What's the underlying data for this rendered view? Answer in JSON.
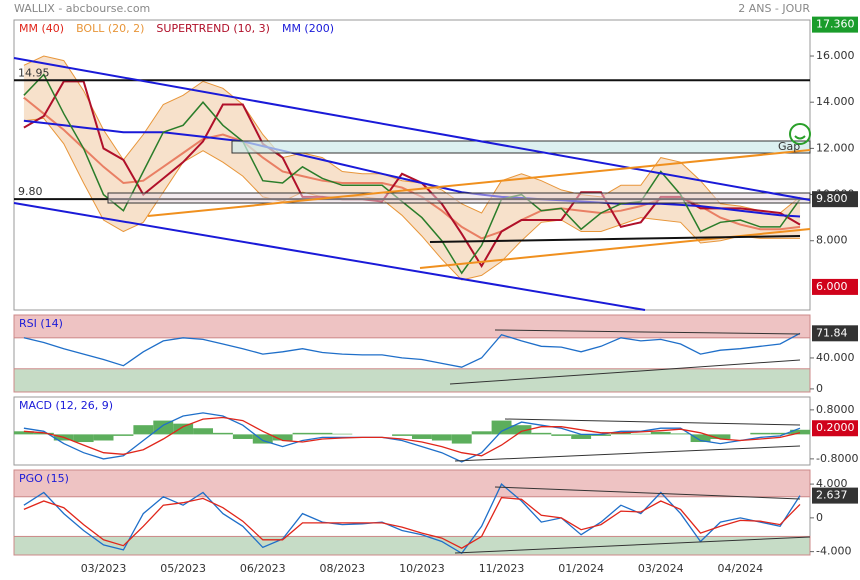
{
  "header": {
    "title": "WALLIX - abcbourse.com",
    "period": "2 ANS - JOUR"
  },
  "chart_data": [
    {
      "type": "line",
      "ylim": [
        5.0,
        17.56
      ],
      "yticks": [
        {
          "value": 16,
          "label": "16.000"
        },
        {
          "value": 14,
          "label": "14.000"
        },
        {
          "value": 12,
          "label": "12.000"
        },
        {
          "value": 10,
          "label": "10.000"
        },
        {
          "value": 8,
          "label": "8.000"
        }
      ],
      "hlines": [
        {
          "value": 14.95,
          "label": "14.95"
        },
        {
          "value": 9.8,
          "label": "9.80"
        }
      ],
      "markers": [
        {
          "value": 17.36,
          "label": "17.360",
          "color": "#1a9c2b"
        },
        {
          "value": 9.8,
          "label": "9.800",
          "color": "#333333"
        },
        {
          "value": 6.0,
          "label": "6.000",
          "color": "#d0021b"
        }
      ],
      "annotation": "Gap",
      "price": {
        "color": "#2a7d2a",
        "values": [
          14.3,
          15.2,
          13.5,
          12.0,
          10.0,
          9.3,
          11.0,
          12.7,
          13.0,
          14.0,
          13.0,
          12.3,
          10.6,
          10.5,
          11.2,
          10.7,
          10.4,
          10.4,
          10.4,
          9.7,
          9.0,
          8.0,
          6.6,
          7.8,
          9.8,
          10.0,
          9.3,
          9.4,
          8.5,
          9.2,
          9.6,
          9.7,
          11.0,
          10.0,
          8.4,
          8.8,
          8.9,
          8.6,
          8.6,
          9.8
        ]
      },
      "series": [
        {
          "name": "MM (40)",
          "color": "#e0261b",
          "values": [
            14.2,
            13.5,
            12.8,
            12.0,
            11.2,
            10.5,
            10.6,
            11.2,
            11.8,
            12.4,
            12.6,
            12.3,
            11.6,
            11.0,
            10.8,
            10.6,
            10.5,
            10.5,
            10.5,
            10.3,
            9.9,
            9.3,
            8.6,
            8.1,
            8.4,
            8.9,
            9.3,
            9.4,
            9.3,
            9.2,
            9.3,
            9.5,
            9.8,
            9.9,
            9.5,
            9.0,
            8.7,
            8.5,
            8.5,
            8.6
          ]
        },
        {
          "name": "BOLL (20, 2)",
          "color": "#e8963a",
          "values": [
            15.6,
            16.0,
            15.8,
            14.5,
            12.8,
            11.5,
            12.6,
            13.9,
            14.3,
            14.9,
            14.6,
            13.9,
            12.6,
            11.6,
            11.8,
            11.6,
            11.0,
            10.9,
            10.9,
            10.6,
            10.5,
            10.2,
            9.6,
            9.2,
            10.6,
            10.9,
            10.6,
            10.2,
            10.0,
            9.9,
            10.4,
            10.4,
            11.6,
            11.4,
            10.6,
            9.6,
            9.5,
            9.3,
            9.2,
            9.9
          ],
          "lower": [
            13.2,
            13.3,
            12.2,
            10.5,
            8.9,
            8.4,
            8.8,
            10.1,
            11.4,
            11.9,
            11.4,
            10.8,
            9.9,
            9.7,
            10.1,
            9.9,
            9.9,
            9.9,
            9.8,
            9.1,
            8.2,
            7.2,
            6.3,
            6.5,
            7.1,
            8.0,
            8.8,
            8.9,
            8.4,
            8.4,
            8.7,
            9.0,
            8.9,
            8.8,
            7.9,
            8.0,
            8.2,
            8.1,
            8.1,
            8.1
          ]
        },
        {
          "name": "SUPERTREND (10, 3)",
          "color": "#b0102a",
          "values": [
            12.9,
            13.4,
            14.9,
            14.9,
            12.0,
            11.5,
            10.0,
            10.7,
            11.4,
            12.3,
            13.9,
            13.9,
            12.2,
            11.6,
            9.9,
            9.9,
            9.8,
            9.8,
            9.7,
            10.9,
            10.5,
            9.6,
            8.3,
            6.9,
            8.4,
            8.9,
            8.9,
            8.9,
            10.1,
            10.1,
            8.6,
            8.8,
            9.9,
            9.9,
            9.4,
            9.4,
            9.4,
            9.3,
            9.2,
            8.7
          ]
        },
        {
          "name": "MM (200)",
          "color": "#1a1ad8",
          "values": [
            13.2,
            13.1,
            13.0,
            12.9,
            12.8,
            12.7,
            12.7,
            12.7,
            12.6,
            12.5,
            12.4,
            12.3,
            12.1,
            11.9,
            11.7,
            11.5,
            11.3,
            11.1,
            10.9,
            10.7,
            10.5,
            10.3,
            10.1,
            10.0,
            9.9,
            9.85,
            9.8,
            9.75,
            9.7,
            9.65,
            9.6,
            9.6,
            9.6,
            9.55,
            9.5,
            9.4,
            9.3,
            9.2,
            9.1,
            9.05
          ]
        }
      ]
    },
    {
      "type": "line",
      "title": "RSI (14)",
      "ylim": [
        -4,
        95.5
      ],
      "yticks": [
        {
          "value": 40,
          "label": "40.000"
        },
        0
      ],
      "bands": [
        {
          "from": 66,
          "to": 95.5,
          "color": "#eec3c3"
        },
        {
          "from": -4,
          "to": 26,
          "color": "#c6dcc6"
        }
      ],
      "markers": [
        {
          "value": 71.84,
          "label": "71.84",
          "color": "#333333"
        }
      ],
      "series": [
        {
          "color": "#1f6fc9",
          "values": [
            66,
            60,
            52,
            45,
            38,
            30,
            48,
            62,
            66,
            64,
            58,
            52,
            45,
            48,
            52,
            47,
            45,
            44,
            44,
            40,
            38,
            33,
            28,
            40,
            70,
            62,
            55,
            54,
            48,
            55,
            66,
            62,
            64,
            58,
            45,
            50,
            52,
            55,
            58,
            71.84
          ]
        }
      ]
    },
    {
      "type": "line",
      "title": "MACD (12, 26, 9)",
      "ylim": [
        -1.0,
        1.22
      ],
      "yticks": [
        {
          "value": 0.8,
          "label": "0.8000"
        },
        {
          "value": -0.8,
          "label": "-0.8000"
        }
      ],
      "markers": [
        {
          "value": 0.2,
          "label": "0.2000",
          "color": "#d0021b"
        }
      ],
      "histogram": {
        "color": "#5cae5c",
        "values": [
          0.1,
          0.05,
          -0.2,
          -0.25,
          -0.2,
          -0.05,
          0.3,
          0.45,
          0.35,
          0.2,
          0.05,
          -0.15,
          -0.3,
          -0.2,
          0.05,
          0.05,
          0.02,
          0.0,
          0.0,
          -0.05,
          -0.15,
          -0.2,
          -0.3,
          0.1,
          0.45,
          0.3,
          0.05,
          -0.05,
          -0.15,
          -0.05,
          0.05,
          0.02,
          0.08,
          0.03,
          -0.25,
          -0.15,
          0.0,
          0.05,
          0.05,
          0.15
        ]
      },
      "series": [
        {
          "color": "#1f6fc9",
          "values": [
            0.2,
            0.1,
            -0.3,
            -0.6,
            -0.8,
            -0.7,
            -0.2,
            0.3,
            0.6,
            0.7,
            0.6,
            0.3,
            -0.2,
            -0.4,
            -0.2,
            -0.1,
            -0.1,
            -0.1,
            -0.1,
            -0.2,
            -0.4,
            -0.6,
            -0.9,
            -0.6,
            0.1,
            0.4,
            0.3,
            0.2,
            0.0,
            0.0,
            0.1,
            0.1,
            0.2,
            0.2,
            -0.2,
            -0.3,
            -0.2,
            -0.1,
            -0.05,
            0.2
          ]
        },
        {
          "color": "#e0261b",
          "values": [
            0.1,
            0.05,
            -0.1,
            -0.35,
            -0.6,
            -0.65,
            -0.5,
            -0.15,
            0.25,
            0.5,
            0.55,
            0.45,
            0.1,
            -0.2,
            -0.25,
            -0.15,
            -0.12,
            -0.1,
            -0.1,
            -0.15,
            -0.25,
            -0.4,
            -0.6,
            -0.7,
            -0.35,
            0.1,
            0.25,
            0.25,
            0.15,
            0.05,
            0.05,
            0.08,
            0.12,
            0.17,
            0.05,
            -0.15,
            -0.2,
            -0.15,
            -0.1,
            0.05
          ]
        }
      ]
    },
    {
      "type": "line",
      "title": "PGO (15)",
      "ylim": [
        -4.4,
        5.67
      ],
      "yticks": [
        {
          "value": 4,
          "label": "4.000"
        },
        0,
        {
          "value": -4,
          "label": "-4.000"
        }
      ],
      "bands": [
        {
          "from": 2.5,
          "to": 5.67,
          "color": "#eec3c3"
        },
        {
          "from": -4.4,
          "to": -2.2,
          "color": "#c6dcc6"
        }
      ],
      "markers": [
        {
          "value": 2.637,
          "label": "2.637",
          "color": "#333333"
        }
      ],
      "categories": [
        null,
        null,
        null,
        null,
        "03/2023",
        null,
        null,
        null,
        "05/2023",
        null,
        null,
        null,
        "06/2023",
        null,
        null,
        null,
        "08/2023",
        null,
        null,
        null,
        "10/2023",
        null,
        null,
        null,
        "11/2023",
        null,
        null,
        null,
        "01/2024",
        null,
        null,
        null,
        "03/2024",
        null,
        null,
        null,
        "04/2024",
        null,
        null,
        null
      ],
      "series": [
        {
          "color": "#1f6fc9",
          "values": [
            1.5,
            3.0,
            0.5,
            -1.5,
            -3.2,
            -3.8,
            0.5,
            2.5,
            1.5,
            3.0,
            0.5,
            -1.0,
            -3.5,
            -2.5,
            0.5,
            -0.5,
            -0.8,
            -0.7,
            -0.5,
            -1.5,
            -2.0,
            -2.8,
            -4.2,
            -1.0,
            4.0,
            2.0,
            -0.5,
            0.0,
            -2.0,
            -0.5,
            1.5,
            0.5,
            3.0,
            0.5,
            -2.8,
            -0.5,
            0.0,
            -0.5,
            -1.0,
            2.637
          ]
        },
        {
          "color": "#e0261b",
          "values": [
            1.0,
            2.0,
            1.2,
            -0.8,
            -2.6,
            -3.3,
            -1.0,
            1.5,
            1.8,
            2.3,
            1.2,
            -0.4,
            -2.6,
            -2.6,
            -0.6,
            -0.6,
            -0.6,
            -0.6,
            -0.6,
            -1.1,
            -1.8,
            -2.4,
            -3.6,
            -2.2,
            2.4,
            2.2,
            0.3,
            0.0,
            -1.4,
            -0.8,
            0.8,
            0.7,
            2.0,
            1.0,
            -1.8,
            -1.0,
            -0.3,
            -0.4,
            -0.8,
            1.6
          ]
        }
      ]
    }
  ]
}
